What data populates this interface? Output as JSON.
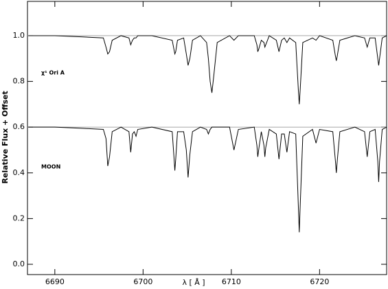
{
  "chart_data": {
    "type": "line",
    "xlabel": "λ [ Å ]",
    "ylabel": "Relative Flux + Offset",
    "annotations": [
      "χ¹ Ori A",
      "MOON"
    ],
    "x": [
      6687,
      6690,
      6693,
      6695.5,
      6695.8,
      6696.0,
      6696.2,
      6696.5,
      6697.5,
      6698.4,
      6698.6,
      6698.8,
      6699.0,
      6699.2,
      6699.4,
      6701,
      6703.3,
      6703.5,
      6703.6,
      6703.7,
      6703.9,
      6704.6,
      6704.9,
      6705.1,
      6705.3,
      6705.6,
      6706.5,
      6707.2,
      6707.4,
      6707.6,
      6707.8,
      6708.0,
      6708.4,
      6709.8,
      6710.3,
      6710.8,
      6712.6,
      6712.9,
      6713.0,
      6713.1,
      6713.4,
      6713.7,
      6713.8,
      6713.9,
      6714.3,
      6715.1,
      6715.4,
      6715.7,
      6716.0,
      6716.3,
      6716.6,
      6717.3,
      6717.6,
      6717.7,
      6717.8,
      6718.1,
      6719.2,
      6719.6,
      6720.0,
      6721.5,
      6721.8,
      6721.9,
      6722.0,
      6722.3,
      6724.0,
      6725.1,
      6725.4,
      6725.7,
      6726.3,
      6726.6,
      6726.7,
      6726.8,
      6727.1,
      6727.6
    ],
    "series": [
      {
        "color": "#000000",
        "values": [
          1.0,
          1.0,
          0.995,
          0.99,
          0.95,
          0.92,
          0.93,
          0.98,
          1.0,
          0.99,
          0.96,
          0.98,
          0.99,
          0.99,
          1.0,
          1.0,
          0.98,
          0.94,
          0.92,
          0.93,
          0.98,
          0.99,
          0.92,
          0.87,
          0.9,
          0.98,
          1.0,
          0.97,
          0.9,
          0.8,
          0.75,
          0.82,
          0.97,
          1.0,
          0.98,
          1.0,
          1.0,
          0.96,
          0.93,
          0.94,
          0.98,
          0.97,
          0.95,
          0.96,
          1.0,
          0.98,
          0.93,
          0.98,
          0.99,
          0.97,
          0.99,
          0.97,
          0.76,
          0.7,
          0.76,
          0.97,
          0.99,
          0.98,
          1.0,
          0.98,
          0.91,
          0.89,
          0.91,
          0.98,
          1.0,
          0.99,
          0.95,
          0.99,
          0.99,
          0.9,
          0.87,
          0.9,
          0.99,
          1.0
        ]
      },
      {
        "color": "#000000",
        "values": [
          0.6,
          0.6,
          0.595,
          0.59,
          0.55,
          0.43,
          0.47,
          0.58,
          0.6,
          0.58,
          0.49,
          0.57,
          0.58,
          0.56,
          0.59,
          0.6,
          0.58,
          0.47,
          0.41,
          0.46,
          0.58,
          0.58,
          0.5,
          0.38,
          0.48,
          0.58,
          0.6,
          0.59,
          0.57,
          0.59,
          0.6,
          0.6,
          0.6,
          0.6,
          0.5,
          0.59,
          0.6,
          0.52,
          0.47,
          0.5,
          0.58,
          0.52,
          0.47,
          0.51,
          0.59,
          0.57,
          0.46,
          0.57,
          0.57,
          0.49,
          0.58,
          0.57,
          0.25,
          0.14,
          0.25,
          0.56,
          0.59,
          0.53,
          0.59,
          0.58,
          0.45,
          0.4,
          0.45,
          0.58,
          0.6,
          0.58,
          0.47,
          0.58,
          0.59,
          0.45,
          0.36,
          0.45,
          0.59,
          0.6
        ]
      }
    ],
    "reference_lines": [
      1.0,
      0.6
    ],
    "reference_color": "#999999",
    "xlim": [
      6686.9,
      6727.6
    ],
    "ylim": [
      -0.045,
      1.15
    ],
    "xticks": [
      6690,
      6700,
      6710,
      6720
    ],
    "yticks": [
      {
        "value": 0,
        "label": "0.0"
      },
      0.2,
      0.4,
      0.6,
      0.8,
      {
        "value": 1.0,
        "label": "1.0"
      }
    ]
  }
}
